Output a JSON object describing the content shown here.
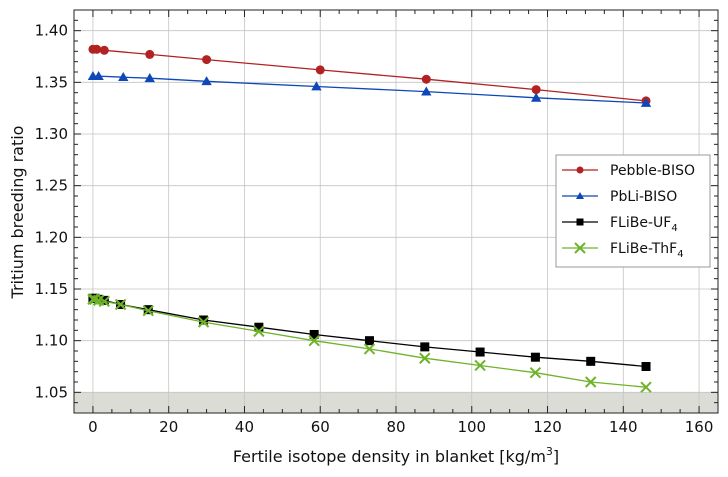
{
  "chart_data": {
    "type": "line",
    "xlabel": "Fertile isotope density in blanket [kg/m",
    "xlabel_sup": "3",
    "xlabel_end": "]",
    "ylabel": "Tritium breeding ratio",
    "xlim": [
      -5,
      165
    ],
    "ylim": [
      1.03,
      1.42
    ],
    "xticks": [
      0,
      20,
      40,
      60,
      80,
      100,
      120,
      140,
      160
    ],
    "yticks": [
      1.05,
      1.1,
      1.15,
      1.2,
      1.25,
      1.3,
      1.35,
      1.4
    ],
    "grid": true,
    "legend_position": "center-right",
    "shaded_band": {
      "y0": 1.03,
      "y1": 1.05,
      "color": "#dcdcd6"
    },
    "series": [
      {
        "name": "Pebble-BISO",
        "name_sub": "",
        "color": "#b22222",
        "marker": "circle",
        "x": [
          0,
          1,
          3,
          15,
          30,
          60,
          88,
          117,
          146
        ],
        "y": [
          1.382,
          1.382,
          1.381,
          1.377,
          1.372,
          1.362,
          1.353,
          1.343,
          1.332
        ]
      },
      {
        "name": "PbLi-BISO",
        "name_sub": "",
        "color": "#0d47b8",
        "marker": "triangle",
        "x": [
          0,
          1.5,
          8,
          15,
          30,
          59,
          88,
          117,
          146
        ],
        "y": [
          1.356,
          1.356,
          1.355,
          1.354,
          1.351,
          1.346,
          1.341,
          1.335,
          1.33
        ]
      },
      {
        "name": "FLiBe-UF",
        "name_sub": "4",
        "color": "#000000",
        "marker": "square",
        "x": [
          0,
          0.5,
          1.5,
          3,
          7.3,
          14.6,
          29.2,
          43.8,
          58.4,
          73,
          87.6,
          102.2,
          116.8,
          131.4,
          146
        ],
        "y": [
          1.141,
          1.141,
          1.14,
          1.139,
          1.135,
          1.13,
          1.12,
          1.113,
          1.106,
          1.1,
          1.094,
          1.089,
          1.084,
          1.08,
          1.075
        ]
      },
      {
        "name": "FLiBe-ThF",
        "name_sub": "4",
        "color": "#6fb32a",
        "marker": "x",
        "x": [
          0,
          0.5,
          1.5,
          3,
          7.3,
          14.6,
          29.2,
          43.8,
          58.4,
          73,
          87.6,
          102.2,
          116.8,
          131.4,
          146
        ],
        "y": [
          1.14,
          1.14,
          1.139,
          1.138,
          1.135,
          1.129,
          1.118,
          1.109,
          1.1,
          1.092,
          1.083,
          1.076,
          1.069,
          1.06,
          1.055
        ]
      }
    ]
  }
}
